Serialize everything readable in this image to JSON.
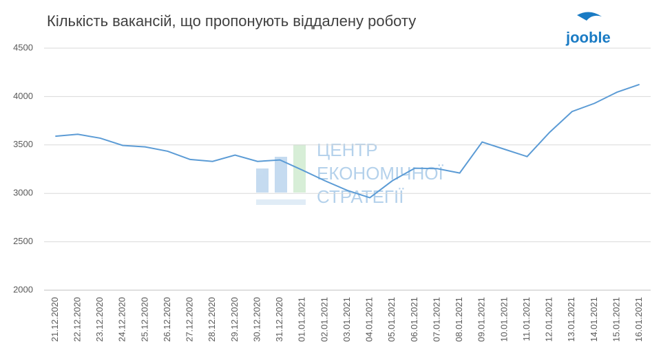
{
  "chart_data": {
    "type": "line",
    "title": "Кількість вакансій, що пропонують віддалену роботу",
    "categories": [
      "21.12.2020",
      "22.12.2020",
      "23.12.2020",
      "24.12.2020",
      "25.12.2020",
      "26.12.2020",
      "27.12.2020",
      "28.12.2020",
      "29.12.2020",
      "30.12.2020",
      "31.12.2020",
      "01.01.2021",
      "02.01.2021",
      "03.01.2021",
      "04.01.2021",
      "05.01.2021",
      "06.01.2021",
      "07.01.2021",
      "08.01.2021",
      "09.01.2021",
      "10.01.2021",
      "11.01.2021",
      "12.01.2021",
      "13.01.2021",
      "14.01.2021",
      "15.01.2021",
      "16.01.2021"
    ],
    "values": [
      3590,
      3610,
      3570,
      3495,
      3480,
      3435,
      3350,
      3330,
      3395,
      3330,
      3345,
      3240,
      3130,
      3030,
      2955,
      3130,
      3260,
      3255,
      3210,
      3530,
      3455,
      3380,
      3630,
      3845,
      3930,
      4045,
      4125
    ],
    "color": "#5b9bd5",
    "ylim": [
      2000,
      4500
    ],
    "yticks": [
      2000,
      2500,
      3000,
      3500,
      4000,
      4500
    ],
    "grid": true,
    "watermark": [
      "ЦЕНТР",
      "ЕКОНОМІЧНОЇ",
      "СТРАТЕГІЇ"
    ],
    "logo": "jooble"
  }
}
